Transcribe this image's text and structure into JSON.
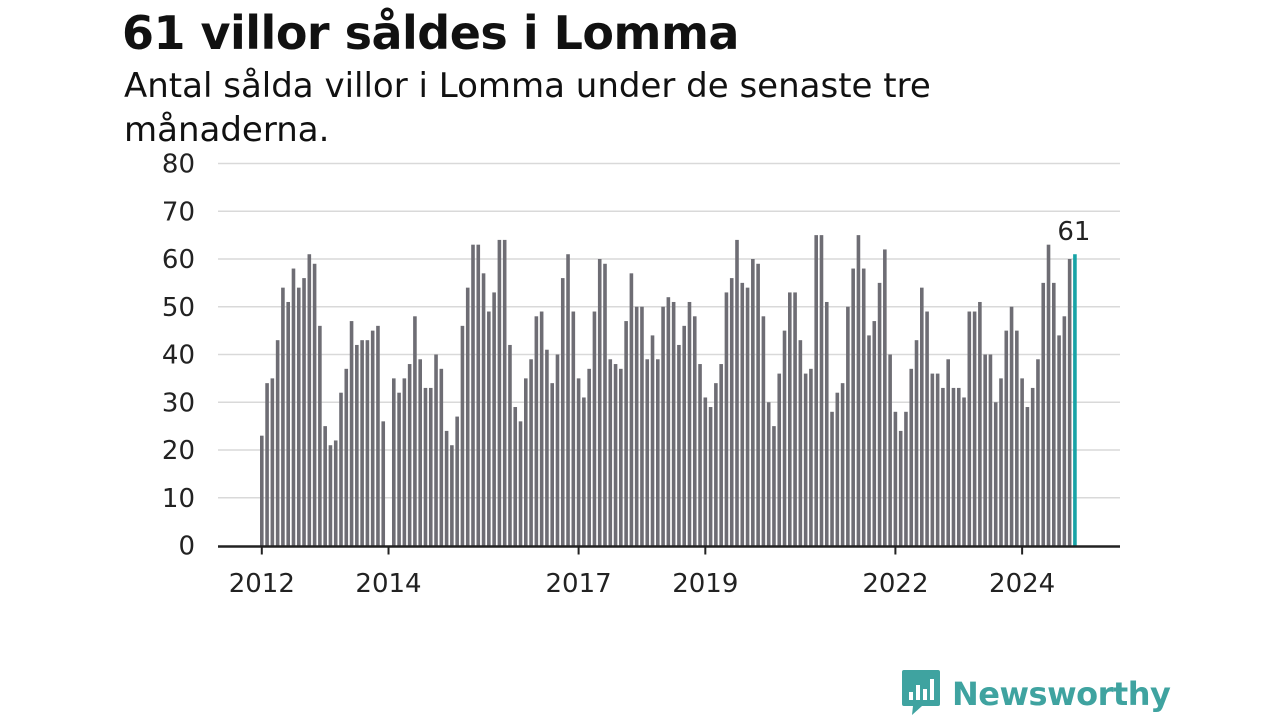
{
  "title": "61 villor såldes i Lomma",
  "subtitle": "Antal sålda villor i Lomma under de senaste tre månaderna.",
  "brand": {
    "name": "Newsworthy",
    "icon": "newsworthy-logo-icon",
    "color": "#3fa3a0"
  },
  "colors": {
    "bar": "#6e6d74",
    "highlight": "#17a3a6",
    "grid": "#d9d9d9",
    "axis": "#222222"
  },
  "chart_data": {
    "type": "bar",
    "ylim": [
      0,
      80
    ],
    "yticks": [
      0,
      10,
      20,
      30,
      40,
      50,
      60,
      70,
      80
    ],
    "xticks": [
      {
        "label": "2012",
        "index": 0
      },
      {
        "label": "2014",
        "index": 24
      },
      {
        "label": "2017",
        "index": 60
      },
      {
        "label": "2019",
        "index": 84
      },
      {
        "label": "2022",
        "index": 120
      },
      {
        "label": "2024",
        "index": 144
      }
    ],
    "values": [
      23,
      34,
      35,
      43,
      54,
      51,
      58,
      54,
      56,
      61,
      59,
      46,
      25,
      21,
      22,
      32,
      37,
      47,
      42,
      43,
      43,
      45,
      46,
      26,
      0,
      35,
      32,
      35,
      38,
      48,
      39,
      33,
      33,
      40,
      37,
      24,
      21,
      27,
      46,
      54,
      63,
      63,
      57,
      49,
      53,
      64,
      64,
      42,
      29,
      26,
      35,
      39,
      48,
      49,
      41,
      34,
      40,
      56,
      61,
      49,
      35,
      31,
      37,
      49,
      60,
      59,
      39,
      38,
      37,
      47,
      57,
      50,
      50,
      39,
      44,
      39,
      50,
      52,
      51,
      42,
      46,
      51,
      48,
      38,
      31,
      29,
      34,
      38,
      53,
      56,
      64,
      55,
      54,
      60,
      59,
      48,
      30,
      25,
      36,
      45,
      53,
      53,
      43,
      36,
      37,
      65,
      65,
      51,
      28,
      32,
      34,
      50,
      58,
      65,
      58,
      44,
      47,
      55,
      62,
      40,
      28,
      24,
      28,
      37,
      43,
      54,
      49,
      36,
      36,
      33,
      39,
      33,
      33,
      31,
      49,
      49,
      51,
      40,
      40,
      30,
      35,
      45,
      50,
      45,
      35,
      29,
      33,
      39,
      55,
      63,
      55,
      44,
      48,
      60,
      61
    ],
    "highlight_index": 154,
    "highlight_label": "61"
  }
}
